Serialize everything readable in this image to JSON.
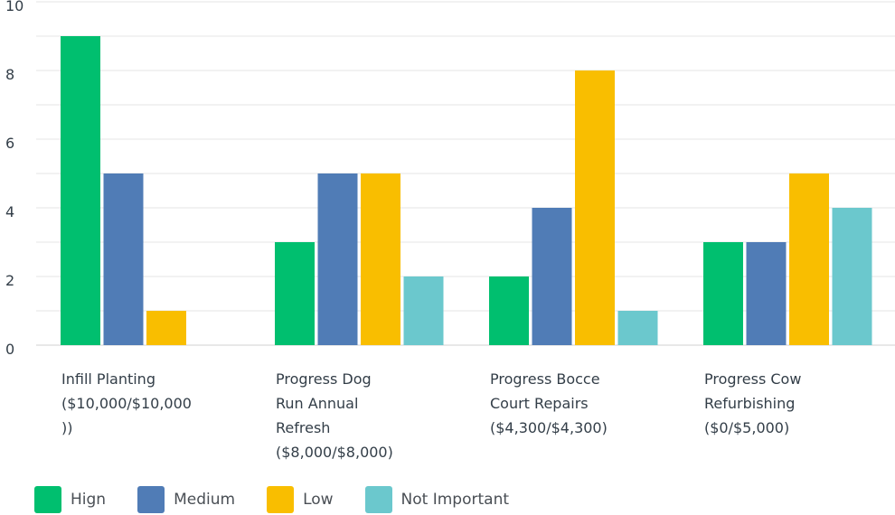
{
  "chart_data": {
    "type": "bar",
    "categories": [
      [
        "Infill Planting",
        "($10,000/$10,000",
        "))"
      ],
      [
        "Progress Dog",
        "Run Annual",
        "Refresh",
        "($8,000/$8,000)"
      ],
      [
        "Progress Bocce",
        "Court Repairs",
        "($4,300/$4,300)"
      ],
      [
        "Progress Cow",
        "Refurbishing",
        "($0/$5,000)"
      ]
    ],
    "series": [
      {
        "name": "Hign",
        "color": "#00bf6f",
        "values": [
          9,
          3,
          2,
          3
        ]
      },
      {
        "name": "Medium",
        "color": "#507cb6",
        "values": [
          5,
          5,
          4,
          3
        ]
      },
      {
        "name": "Low",
        "color": "#f9be00",
        "values": [
          1,
          5,
          8,
          5
        ]
      },
      {
        "name": "Not Important",
        "color": "#6bc8cd",
        "values": [
          0,
          2,
          1,
          4
        ]
      }
    ],
    "ylim": [
      0,
      10
    ],
    "yticks": [
      "0",
      "2",
      "4",
      "6",
      "8",
      "10"
    ],
    "grid": true,
    "legend": "bottom-left"
  }
}
